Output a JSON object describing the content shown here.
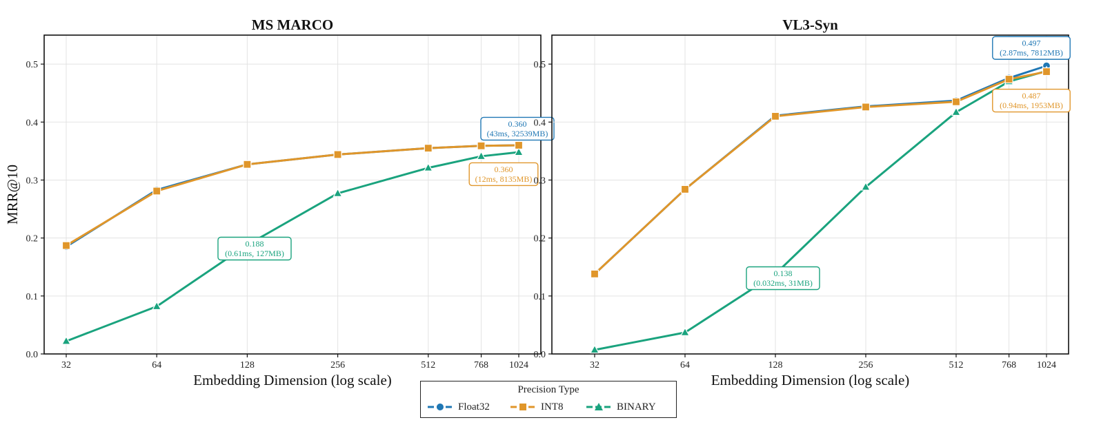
{
  "figure": {
    "legend": {
      "title": "Precision Type",
      "entries": [
        {
          "name": "Float32",
          "color": "#1f77b4",
          "marker": "circle"
        },
        {
          "name": "INT8",
          "color": "#e0962a",
          "marker": "square"
        },
        {
          "name": "BINARY",
          "color": "#1aa37e",
          "marker": "triangle"
        }
      ]
    }
  },
  "chart_data": [
    {
      "type": "line",
      "title": "MS MARCO",
      "xlabel": "Embedding Dimension (log scale)",
      "ylabel": "MRR@10",
      "xscale": "log2",
      "x": [
        32,
        64,
        128,
        256,
        512,
        768,
        1024
      ],
      "xticks": [
        "32",
        "64",
        "128",
        "256",
        "512",
        "768",
        "1024"
      ],
      "ylim": [
        0.0,
        0.55
      ],
      "yticks": [
        "0.0",
        "0.1",
        "0.2",
        "0.3",
        "0.4",
        "0.5"
      ],
      "grid": true,
      "series": [
        {
          "name": "Float32",
          "color": "#1f77b4",
          "marker": "circle",
          "values": [
            0.185,
            0.283,
            0.327,
            0.344,
            0.355,
            0.359,
            0.36
          ]
        },
        {
          "name": "INT8",
          "color": "#e0962a",
          "marker": "square",
          "values": [
            0.187,
            0.281,
            0.327,
            0.344,
            0.355,
            0.359,
            0.36
          ]
        },
        {
          "name": "BINARY",
          "color": "#1aa37e",
          "marker": "triangle",
          "values": [
            0.022,
            0.082,
            0.188,
            0.277,
            0.321,
            0.341,
            0.348
          ]
        }
      ],
      "annotations": [
        {
          "series": "Float32",
          "line1": "0.360",
          "line2": "(43ms, 32539MB)",
          "color": "#1f77b4"
        },
        {
          "series": "INT8",
          "line1": "0.360",
          "line2": "(12ms, 8135MB)",
          "color": "#e0962a"
        },
        {
          "series": "BINARY",
          "line1": "0.188",
          "line2": "(0.61ms, 127MB)",
          "color": "#1aa37e"
        }
      ]
    },
    {
      "type": "line",
      "title": "VL3-Syn",
      "xlabel": "Embedding Dimension (log scale)",
      "ylabel": "",
      "xscale": "log2",
      "x": [
        32,
        64,
        128,
        256,
        512,
        768,
        1024
      ],
      "xticks": [
        "32",
        "64",
        "128",
        "256",
        "512",
        "768",
        "1024"
      ],
      "ylim": [
        0.0,
        0.55
      ],
      "yticks": [
        "0.0",
        "0.1",
        "0.2",
        "0.3",
        "0.4",
        "0.5"
      ],
      "grid": true,
      "series": [
        {
          "name": "Float32",
          "color": "#1f77b4",
          "marker": "circle",
          "values": [
            0.138,
            0.284,
            0.411,
            0.427,
            0.437,
            0.476,
            0.497
          ]
        },
        {
          "name": "INT8",
          "color": "#e0962a",
          "marker": "square",
          "values": [
            0.138,
            0.284,
            0.41,
            0.426,
            0.435,
            0.474,
            0.487
          ]
        },
        {
          "name": "BINARY",
          "color": "#1aa37e",
          "marker": "triangle",
          "values": [
            0.007,
            0.037,
            0.138,
            0.288,
            0.417,
            0.47,
            0.488
          ]
        }
      ],
      "annotations": [
        {
          "series": "Float32",
          "line1": "0.497",
          "line2": "(2.87ms, 7812MB)",
          "color": "#1f77b4"
        },
        {
          "series": "INT8",
          "line1": "0.487",
          "line2": "(0.94ms, 1953MB)",
          "color": "#e0962a"
        },
        {
          "series": "BINARY",
          "line1": "0.138",
          "line2": "(0.032ms, 31MB)",
          "color": "#1aa37e"
        }
      ]
    }
  ]
}
